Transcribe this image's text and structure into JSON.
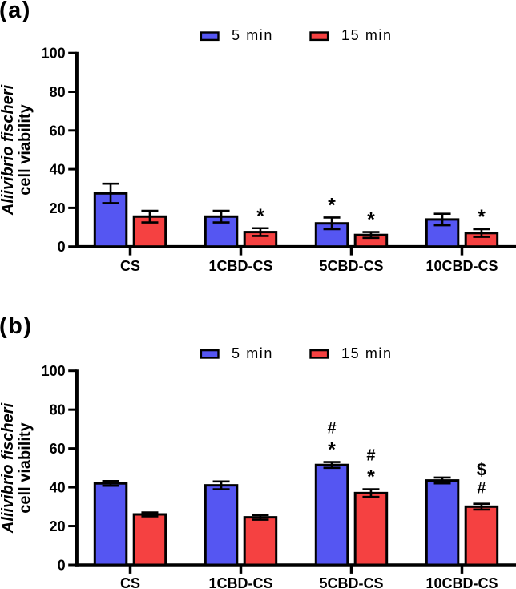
{
  "figure": {
    "background": "#ffffff",
    "text_color": "#000000"
  },
  "chart_data": [
    {
      "type": "bar",
      "panel_label": "(a)",
      "ylabel_line1": "Aliivibrio fischeri",
      "ylabel_line2": "cell viability",
      "ylabel_line1_italic": true,
      "categories": [
        "CS",
        "1CBD-CS",
        "5CBD-CS",
        "10CBD-CS"
      ],
      "ylim": [
        0,
        100
      ],
      "yticks": [
        0,
        20,
        40,
        60,
        80,
        100
      ],
      "grid": false,
      "legend_position": "top",
      "series": [
        {
          "name": "5 min",
          "color": "#5556f2",
          "values": [
            27.5,
            15.5,
            12,
            14
          ],
          "sd": [
            5,
            3,
            3,
            3
          ]
        },
        {
          "name": "15 min",
          "color": "#f54141",
          "values": [
            15.5,
            7.5,
            6,
            7
          ],
          "sd": [
            3,
            2,
            1.5,
            2
          ]
        }
      ],
      "annotations": [
        {
          "category": "1CBD-CS",
          "series": "15 min",
          "symbols": [
            "*"
          ]
        },
        {
          "category": "5CBD-CS",
          "series": "5 min",
          "symbols": [
            "*"
          ]
        },
        {
          "category": "5CBD-CS",
          "series": "15 min",
          "symbols": [
            "*"
          ]
        },
        {
          "category": "10CBD-CS",
          "series": "15 min",
          "symbols": [
            "*"
          ]
        }
      ]
    },
    {
      "type": "bar",
      "panel_label": "(b)",
      "ylabel_line1": "Aliivibrio fischeri",
      "ylabel_line2": "cell viability",
      "ylabel_line1_italic": true,
      "categories": [
        "CS",
        "1CBD-CS",
        "5CBD-CS",
        "10CBD-CS"
      ],
      "ylim": [
        0,
        100
      ],
      "yticks": [
        0,
        20,
        40,
        60,
        80,
        100
      ],
      "grid": false,
      "legend_position": "top",
      "series": [
        {
          "name": "5 min",
          "color": "#5556f2",
          "values": [
            42,
            41,
            51.5,
            43.5
          ],
          "sd": [
            1.2,
            2,
            1.5,
            1.5
          ]
        },
        {
          "name": "15 min",
          "color": "#f54141",
          "values": [
            26,
            24.5,
            37,
            30
          ],
          "sd": [
            1,
            1.2,
            2,
            1.5
          ]
        }
      ],
      "annotations": [
        {
          "category": "5CBD-CS",
          "series": "5 min",
          "symbols": [
            "#",
            "*"
          ]
        },
        {
          "category": "5CBD-CS",
          "series": "15 min",
          "symbols": [
            "#",
            "*"
          ]
        },
        {
          "category": "10CBD-CS",
          "series": "15 min",
          "symbols": [
            "$",
            "#"
          ]
        }
      ]
    }
  ]
}
